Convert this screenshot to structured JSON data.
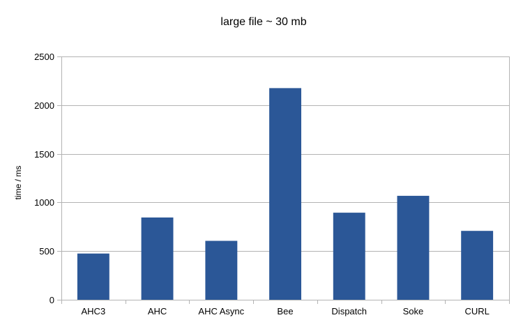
{
  "chart_data": {
    "type": "bar",
    "title": "large file ~ 30 mb",
    "xlabel": "",
    "ylabel": "time / ms",
    "categories": [
      "AHC3",
      "AHC",
      "AHC Async",
      "Bee",
      "Dispatch",
      "Soke",
      "CURL"
    ],
    "values": [
      475,
      845,
      605,
      2175,
      895,
      1068,
      708
    ],
    "ylim": [
      0,
      2500
    ],
    "yticks": [
      0,
      500,
      1000,
      1500,
      2000,
      2500
    ],
    "grid": true,
    "legend": "none",
    "bar_color": "#2b5797"
  }
}
